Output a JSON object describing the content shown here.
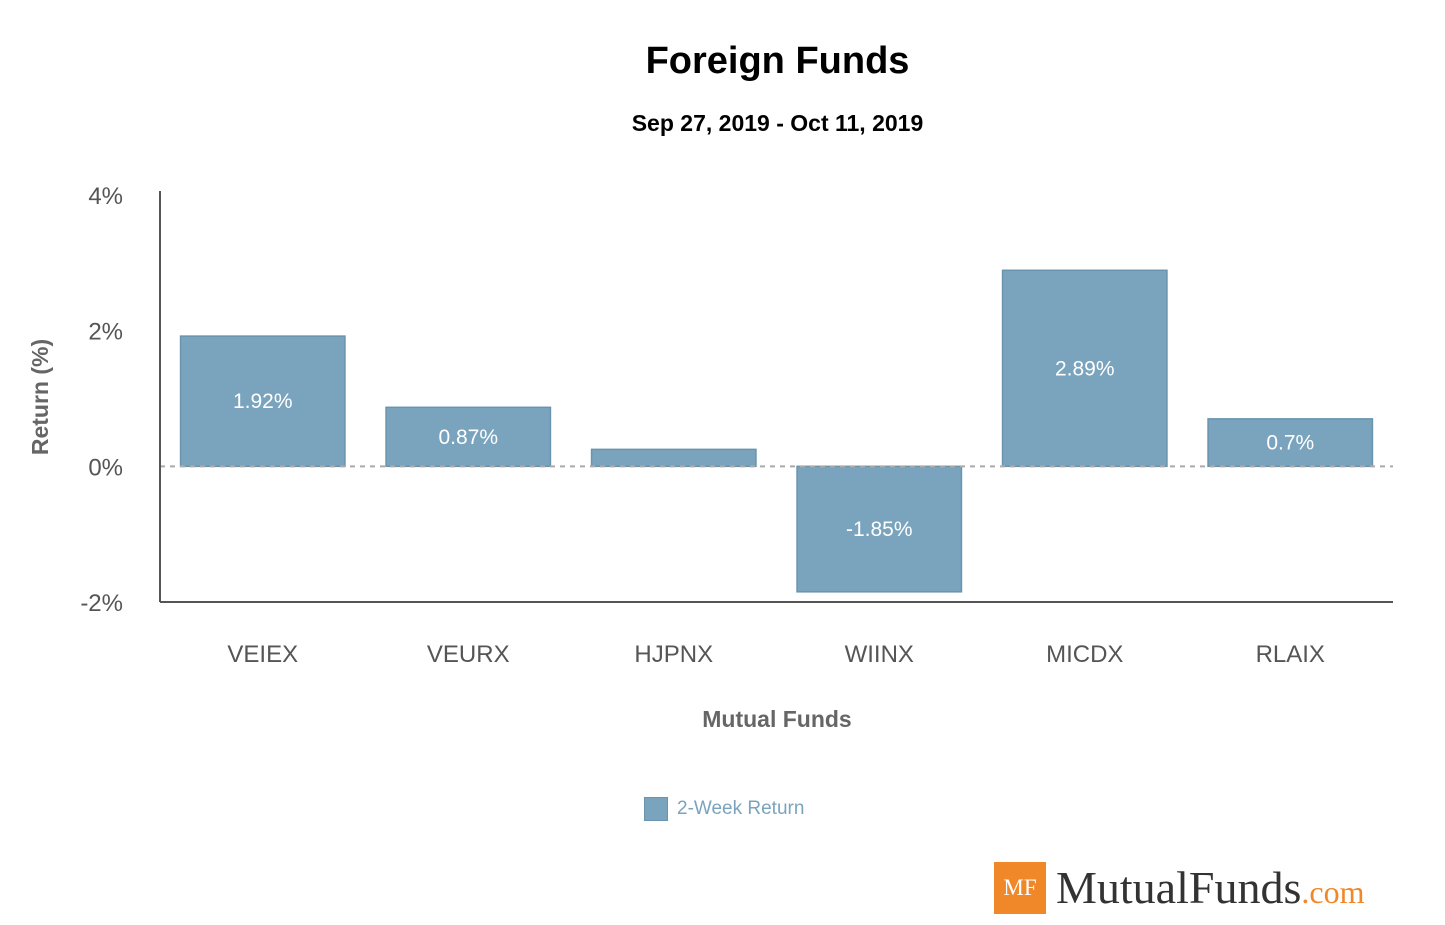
{
  "chart_data": {
    "type": "bar",
    "title": "Foreign Funds",
    "subtitle": "Sep 27, 2019 - Oct 11, 2019",
    "xlabel": "Mutual Funds",
    "ylabel": "Return (%)",
    "categories": [
      "VEIEX",
      "VEURX",
      "HJPNX",
      "WIINX",
      "MICDX",
      "RLAIX"
    ],
    "series": [
      {
        "name": "2-Week Return",
        "values": [
          1.92,
          0.87,
          0.25,
          -1.85,
          2.89,
          0.7
        ],
        "data_labels": [
          "1.92%",
          "0.87%",
          "",
          "-1.85%",
          "2.89%",
          "0.7%"
        ]
      }
    ],
    "ylim": [
      -2,
      4
    ],
    "yticks": [
      4,
      2,
      0,
      -2
    ],
    "ytick_labels": [
      "4%",
      "2%",
      "0%",
      "-2%"
    ],
    "zero_line": "dashed",
    "grid": false,
    "legend": "bottom-center",
    "colors": {
      "bar": "#7aa4bd",
      "bar_border": "#6a94ad",
      "axis": "#555555",
      "zero_line": "#aaaaaa"
    }
  },
  "logo": {
    "mark": "MF",
    "name": "MutualFunds",
    "suffix": ".com"
  }
}
